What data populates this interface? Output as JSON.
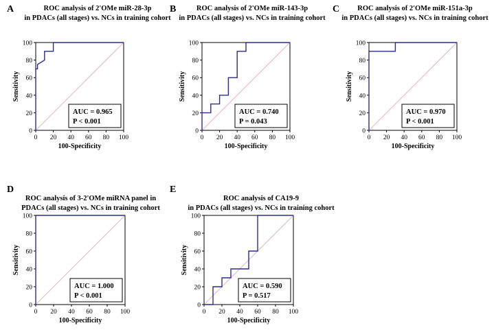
{
  "chart_data": [
    {
      "id": "A",
      "type": "line",
      "title": [
        "ROC analysis of 2'OMe miR-28-3p",
        "in PDACs (all stages) vs. NCs in training cohort"
      ],
      "xlabel": "100-Specificity",
      "ylabel": "Sensitivity",
      "xlim": [
        0,
        100
      ],
      "ylim": [
        0,
        100
      ],
      "ticks": [
        "0",
        "20",
        "40",
        "60",
        "80",
        "100"
      ],
      "diagonal": true,
      "roc": [
        [
          0,
          0
        ],
        [
          0,
          70
        ],
        [
          2,
          70
        ],
        [
          2,
          75
        ],
        [
          10,
          80
        ],
        [
          10,
          90
        ],
        [
          20,
          90
        ],
        [
          20,
          100
        ],
        [
          100,
          100
        ]
      ],
      "auc_text": "AUC = 0.965",
      "p_text": "P < 0.001"
    },
    {
      "id": "B",
      "type": "line",
      "title": [
        "ROC analysis of 2'OMe miR-143-3p",
        "in PDACs (all stages) vs. NCs in training cohort"
      ],
      "xlabel": "100-Specificity",
      "ylabel": "Sensitivity",
      "xlim": [
        0,
        100
      ],
      "ylim": [
        0,
        100
      ],
      "ticks": [
        "0",
        "20",
        "40",
        "60",
        "80",
        "100"
      ],
      "diagonal": true,
      "roc": [
        [
          0,
          0
        ],
        [
          0,
          20
        ],
        [
          10,
          20
        ],
        [
          10,
          30
        ],
        [
          20,
          30
        ],
        [
          20,
          40
        ],
        [
          30,
          40
        ],
        [
          30,
          60
        ],
        [
          40,
          60
        ],
        [
          40,
          90
        ],
        [
          50,
          90
        ],
        [
          50,
          100
        ],
        [
          100,
          100
        ]
      ],
      "auc_text": "AUC = 0.740",
      "p_text": "P = 0.043"
    },
    {
      "id": "C",
      "type": "line",
      "title": [
        "ROC analysis of 2'OMe miR-151a-3p",
        "in PDACs (all stages) vs. NCs in training cohort"
      ],
      "xlabel": "100-Specificity",
      "ylabel": "Sensitivity",
      "xlim": [
        0,
        100
      ],
      "ylim": [
        0,
        100
      ],
      "ticks": [
        "0",
        "20",
        "40",
        "60",
        "80",
        "100"
      ],
      "diagonal": true,
      "roc": [
        [
          0,
          0
        ],
        [
          0,
          90
        ],
        [
          30,
          90
        ],
        [
          30,
          100
        ],
        [
          100,
          100
        ]
      ],
      "auc_text": "AUC = 0.970",
      "p_text": "P < 0.001"
    },
    {
      "id": "D",
      "type": "line",
      "title": [
        "ROC analysis of 3-2'OMe miRNA panel in",
        "PDACs (all stages) vs. NCs in training cohort"
      ],
      "xlabel": "100-Specificity",
      "ylabel": "Sensitivity",
      "xlim": [
        0,
        100
      ],
      "ylim": [
        0,
        100
      ],
      "ticks": [
        "0",
        "20",
        "40",
        "60",
        "80",
        "100"
      ],
      "diagonal": true,
      "roc": [
        [
          0,
          0
        ],
        [
          0,
          100
        ],
        [
          100,
          100
        ]
      ],
      "auc_text": "AUC = 1.000",
      "p_text": "P < 0.001"
    },
    {
      "id": "E",
      "type": "line",
      "title": [
        "ROC analysis of CA19-9",
        "in PDACs (all stages) vs. NCs in training cohort"
      ],
      "xlabel": "100-Specificity",
      "ylabel": "Sensitivity",
      "xlim": [
        0,
        100
      ],
      "ylim": [
        0,
        100
      ],
      "ticks": [
        "0",
        "20",
        "40",
        "60",
        "80",
        "100"
      ],
      "diagonal": true,
      "roc": [
        [
          0,
          0
        ],
        [
          10,
          0
        ],
        [
          10,
          20
        ],
        [
          20,
          20
        ],
        [
          20,
          30
        ],
        [
          30,
          30
        ],
        [
          30,
          40
        ],
        [
          50,
          40
        ],
        [
          50,
          60
        ],
        [
          60,
          60
        ],
        [
          60,
          100
        ],
        [
          100,
          100
        ]
      ],
      "auc_text": "AUC = 0.590",
      "p_text": "P = 0.517"
    }
  ],
  "colors": {
    "roc_line": "#2b2b8a",
    "diagonal": "#e2b5bd",
    "axis": "#000000",
    "background": "#ffffff"
  }
}
